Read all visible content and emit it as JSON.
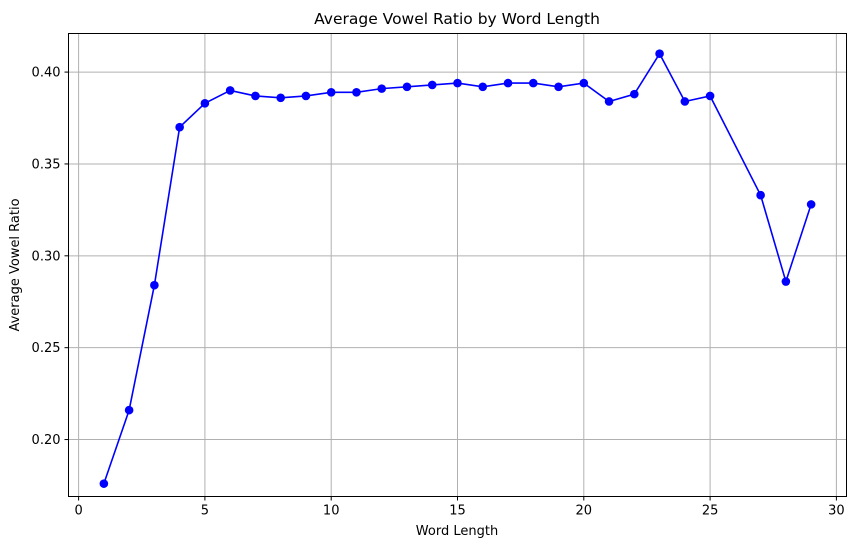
{
  "chart_data": {
    "type": "line",
    "title": "Average Vowel Ratio by Word Length",
    "xlabel": "Word Length",
    "ylabel": "Average Vowel Ratio",
    "xlim": [
      -0.4,
      30.4
    ],
    "ylim": [
      0.169,
      0.421
    ],
    "xticks": [
      0,
      5,
      10,
      15,
      20,
      25,
      30
    ],
    "xtick_labels": [
      "0",
      "5",
      "10",
      "15",
      "20",
      "25",
      "30"
    ],
    "yticks": [
      0.2,
      0.25,
      0.3,
      0.35,
      0.4
    ],
    "ytick_labels": [
      "0.20",
      "0.25",
      "0.30",
      "0.35",
      "0.40"
    ],
    "grid": true,
    "series": [
      {
        "color": "#0000ff",
        "marker": "circle",
        "x": [
          1,
          2,
          3,
          4,
          5,
          6,
          7,
          8,
          9,
          10,
          11,
          12,
          13,
          14,
          15,
          16,
          17,
          18,
          19,
          20,
          21,
          22,
          23,
          24,
          25,
          27,
          28,
          29
        ],
        "y": [
          0.176,
          0.216,
          0.284,
          0.37,
          0.383,
          0.39,
          0.387,
          0.386,
          0.387,
          0.389,
          0.389,
          0.391,
          0.392,
          0.393,
          0.394,
          0.392,
          0.394,
          0.394,
          0.392,
          0.394,
          0.384,
          0.388,
          0.41,
          0.384,
          0.387,
          0.333,
          0.286,
          0.328
        ]
      }
    ]
  }
}
